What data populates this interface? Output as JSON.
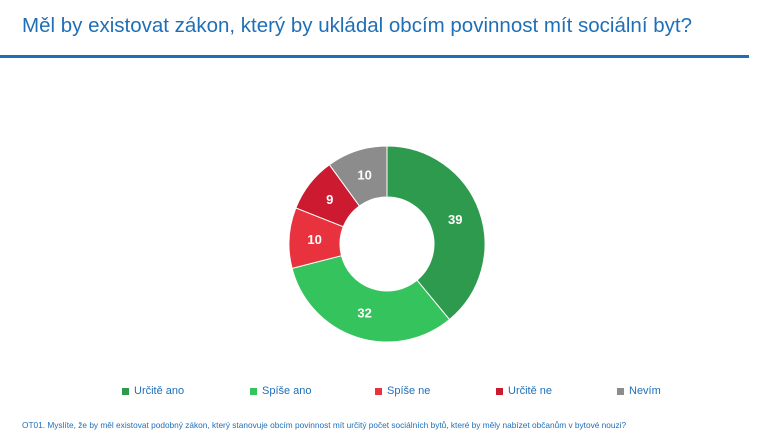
{
  "slide": {
    "title": "Měl by existovat zákon, který by ukládal obcím povinnost mít sociální byt?",
    "footnote": "OT01. Myslíte, že by měl existovat podobný zákon, který stanovuje obcím povinnost mít určitý počet sociálních bytů, které by měly nabízet občanům v bytové nouzi?"
  },
  "colors": {
    "accent": "#1f6fb8",
    "label_text": "#ffffff"
  },
  "chart_data": {
    "type": "pie",
    "variant": "donut",
    "categories": [
      "Určitě ano",
      "Spíše ano",
      "Spíše ne",
      "Určitě ne",
      "Nevím"
    ],
    "values": [
      39,
      32,
      10,
      9,
      10
    ],
    "colors": [
      "#2e9a4e",
      "#34c35c",
      "#e8333f",
      "#cc1a30",
      "#8c8c8c"
    ],
    "data_labels": [
      "39",
      "32",
      "10",
      "9",
      "10"
    ],
    "start": "12 o'clock",
    "direction": "clockwise",
    "legend_position": "bottom",
    "title": ""
  }
}
